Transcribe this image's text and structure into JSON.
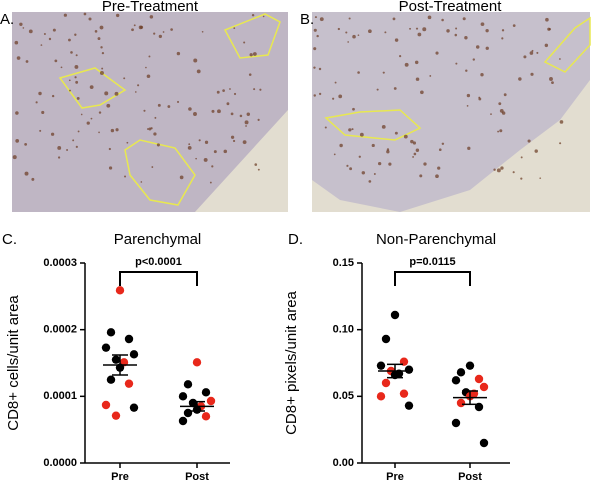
{
  "images": [
    {
      "label": "A.",
      "title": "Pre-Treatment"
    },
    {
      "label": "B.",
      "title": "Post-Treatment"
    }
  ],
  "chart_data": [
    {
      "type": "scatter",
      "label": "C.",
      "title": "Parenchymal",
      "y_label": "CD8+ cells/unit area",
      "annotation": "p<0.0001",
      "ylim": [
        0,
        0.0003
      ],
      "yticks": [
        {
          "value": 0,
          "label": "0.0000"
        },
        {
          "value": 0.0001,
          "label": "0.0001"
        },
        {
          "value": 0.0002,
          "label": "0.0002"
        },
        {
          "value": 0.0003,
          "label": "0.0003"
        }
      ],
      "groups": [
        {
          "name": "Pre",
          "values": [
            0.000259,
            0.000196,
            0.000186,
            0.000173,
            0.000163,
            0.000155,
            0.000151,
            0.000143,
            0.000125,
            0.000119,
            8.7e-05,
            8.3e-05,
            7.1e-05
          ],
          "colors": [
            "#e8281b",
            "#000000",
            "#000000",
            "#000000",
            "#000000",
            "#000000",
            "#e8281b",
            "#000000",
            "#000000",
            "#e8281b",
            "#e8281b",
            "#000000",
            "#e8281b"
          ],
          "mean": 0.000147,
          "sem": 1.5e-05
        },
        {
          "name": "Post",
          "values": [
            0.000151,
            0.000118,
            0.000106,
            0.0001,
            9.3e-05,
            9e-05,
            8.5e-05,
            8e-05,
            7.5e-05,
            7e-05,
            6.3e-05
          ],
          "colors": [
            "#e8281b",
            "#000000",
            "#000000",
            "#000000",
            "#e8281b",
            "#000000",
            "#e8281b",
            "#000000",
            "#000000",
            "#e8281b",
            "#000000"
          ],
          "mean": 8.5e-05,
          "sem": 7e-06
        }
      ]
    },
    {
      "type": "scatter",
      "label": "D.",
      "title": "Non-Parenchymal",
      "y_label": "CD8+ pixels/unit area",
      "annotation": "p=0.0115",
      "ylim": [
        0,
        0.15
      ],
      "yticks": [
        {
          "value": 0,
          "label": "0.00"
        },
        {
          "value": 0.05,
          "label": "0.05"
        },
        {
          "value": 0.1,
          "label": "0.10"
        },
        {
          "value": 0.15,
          "label": "0.15"
        }
      ],
      "groups": [
        {
          "name": "Pre",
          "values": [
            0.111,
            0.093,
            0.076,
            0.073,
            0.07,
            0.069,
            0.067,
            0.066,
            0.06,
            0.052,
            0.05,
            0.043
          ],
          "colors": [
            "#000000",
            "#000000",
            "#e8281b",
            "#000000",
            "#000000",
            "#e8281b",
            "#000000",
            "#000000",
            "#e8281b",
            "#e8281b",
            "#e8281b",
            "#000000"
          ],
          "mean": 0.069,
          "sem": 0.005
        },
        {
          "name": "Post",
          "values": [
            0.073,
            0.068,
            0.063,
            0.062,
            0.057,
            0.053,
            0.052,
            0.05,
            0.045,
            0.042,
            0.03,
            0.015
          ],
          "colors": [
            "#000000",
            "#000000",
            "#e8281b",
            "#000000",
            "#e8281b",
            "#000000",
            "#e8281b",
            "#e8281b",
            "#e8281b",
            "#000000",
            "#000000",
            "#000000"
          ],
          "mean": 0.049,
          "sem": 0.005
        }
      ]
    }
  ]
}
